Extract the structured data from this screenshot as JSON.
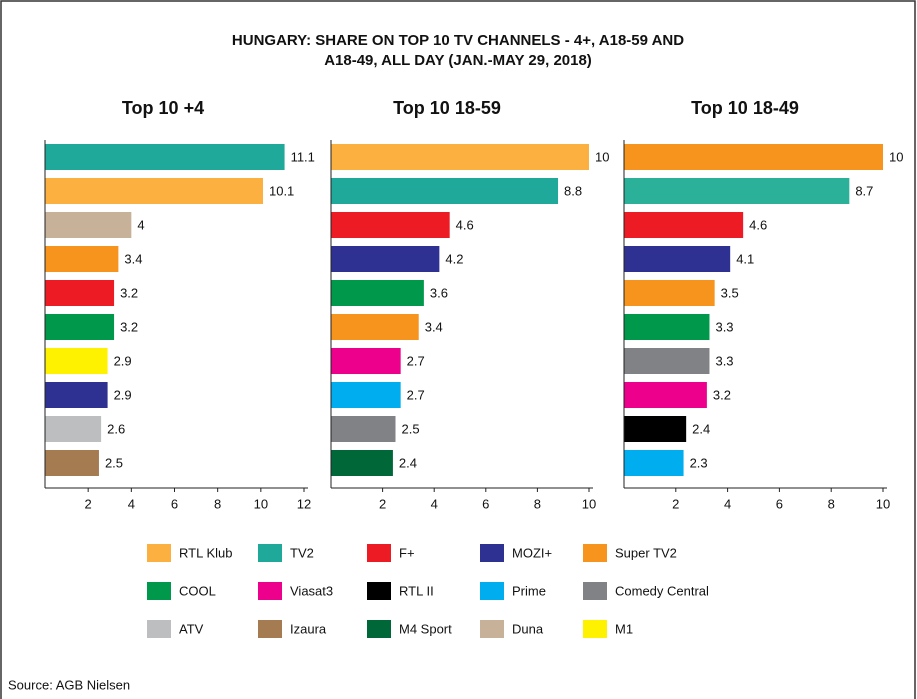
{
  "title": [
    "HUNGARY: SHARE ON TOP 10 TV CHANNELS - 4+, A18-59 AND",
    "A18-49, ALL DAY (JAN.-MAY 29, 2018)"
  ],
  "chart_data": [
    {
      "type": "bar",
      "orientation": "horizontal",
      "title": "Top 10 +4",
      "values": [
        11.1,
        10.1,
        4,
        3.4,
        3.2,
        3.2,
        2.9,
        2.9,
        2.6,
        2.5
      ],
      "colors": [
        "#1fa99b",
        "#fbb040",
        "#c7b299",
        "#f7941d",
        "#ed1c24",
        "#00994c",
        "#fff200",
        "#2e3192",
        "#bcbec0",
        "#a57c52"
      ],
      "xlim": [
        0,
        12
      ],
      "xticks": [
        2,
        4,
        6,
        8,
        10,
        12
      ]
    },
    {
      "type": "bar",
      "orientation": "horizontal",
      "title": "Top 10 18-59",
      "values": [
        10,
        8.8,
        4.6,
        4.2,
        3.6,
        3.4,
        2.7,
        2.7,
        2.5,
        2.4
      ],
      "colors": [
        "#fbb040",
        "#1fa99b",
        "#ed1c24",
        "#2e3192",
        "#00994c",
        "#f7941d",
        "#ec008c",
        "#00aeef",
        "#808285",
        "#006838"
      ],
      "xlim": [
        0,
        10
      ],
      "xticks": [
        2,
        4,
        6,
        8,
        10
      ]
    },
    {
      "type": "bar",
      "orientation": "horizontal",
      "title": "Top 10 18-49",
      "values": [
        10,
        8.7,
        4.6,
        4.1,
        3.5,
        3.3,
        3.3,
        3.2,
        2.4,
        2.3
      ],
      "colors": [
        "#f7941d",
        "#2bb09a",
        "#ed1c24",
        "#2e3192",
        "#f7941d",
        "#00994c",
        "#808285",
        "#ec008c",
        "#000000",
        "#00aeef"
      ],
      "xlim": [
        0,
        10
      ],
      "xticks": [
        2,
        4,
        6,
        8,
        10
      ]
    }
  ],
  "legend": [
    {
      "name": "RTL Klub",
      "color": "#fbb040"
    },
    {
      "name": "TV2",
      "color": "#1fa99b"
    },
    {
      "name": "F+",
      "color": "#ed1c24"
    },
    {
      "name": "MOZI+",
      "color": "#2e3192"
    },
    {
      "name": "Super TV2",
      "color": "#f7941d"
    },
    {
      "name": "COOL",
      "color": "#00994c"
    },
    {
      "name": "Viasat3",
      "color": "#ec008c"
    },
    {
      "name": "RTL II",
      "color": "#000000"
    },
    {
      "name": "Prime",
      "color": "#00aeef"
    },
    {
      "name": "Comedy Central",
      "color": "#808285"
    },
    {
      "name": "ATV",
      "color": "#bcbec0"
    },
    {
      "name": "Izaura",
      "color": "#a57c52"
    },
    {
      "name": "M4 Sport",
      "color": "#006838"
    },
    {
      "name": "Duna",
      "color": "#c7b299"
    },
    {
      "name": "M1",
      "color": "#fff200"
    }
  ],
  "source": "Source: AGB Nielsen"
}
